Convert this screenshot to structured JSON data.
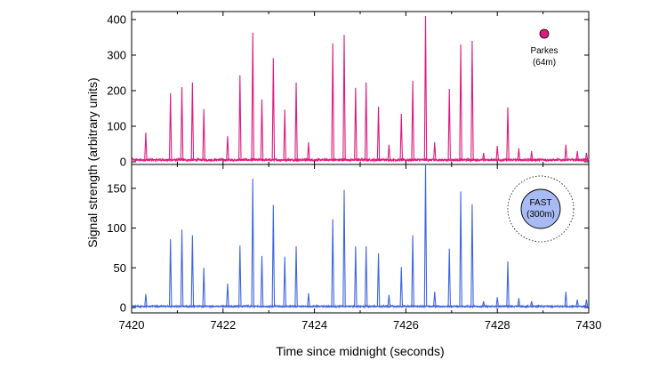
{
  "chart_data": {
    "type": "line",
    "xlabel": "Time since midnight (seconds)",
    "ylabel": "Signal strength (arbitrary units)",
    "xlim": [
      7420,
      7430
    ],
    "xticks": [
      7420,
      7422,
      7424,
      7426,
      7428,
      7430
    ],
    "grid": false,
    "panels": [
      {
        "name": "Parkes",
        "legend_lines": [
          "Parkes",
          "(64m)"
        ],
        "legend_position": "top-right",
        "color": "#e0197e",
        "ylim": [
          0,
          410
        ],
        "yticks": [
          0,
          100,
          200,
          300,
          400
        ],
        "baseline": 7,
        "pulses": [
          {
            "t": 7420.31,
            "v": 82
          },
          {
            "t": 7420.85,
            "v": 193
          },
          {
            "t": 7421.1,
            "v": 210
          },
          {
            "t": 7421.33,
            "v": 223
          },
          {
            "t": 7421.58,
            "v": 148
          },
          {
            "t": 7422.1,
            "v": 72
          },
          {
            "t": 7422.37,
            "v": 243
          },
          {
            "t": 7422.65,
            "v": 363
          },
          {
            "t": 7422.85,
            "v": 175
          },
          {
            "t": 7423.1,
            "v": 292
          },
          {
            "t": 7423.35,
            "v": 147
          },
          {
            "t": 7423.6,
            "v": 223
          },
          {
            "t": 7423.87,
            "v": 55
          },
          {
            "t": 7424.4,
            "v": 333
          },
          {
            "t": 7424.65,
            "v": 357
          },
          {
            "t": 7424.9,
            "v": 208
          },
          {
            "t": 7425.13,
            "v": 223
          },
          {
            "t": 7425.4,
            "v": 155
          },
          {
            "t": 7425.63,
            "v": 48
          },
          {
            "t": 7425.9,
            "v": 135
          },
          {
            "t": 7426.15,
            "v": 228
          },
          {
            "t": 7426.43,
            "v": 410
          },
          {
            "t": 7426.63,
            "v": 55
          },
          {
            "t": 7426.95,
            "v": 205
          },
          {
            "t": 7427.2,
            "v": 330
          },
          {
            "t": 7427.45,
            "v": 340
          },
          {
            "t": 7427.7,
            "v": 25
          },
          {
            "t": 7428.0,
            "v": 45
          },
          {
            "t": 7428.23,
            "v": 153
          },
          {
            "t": 7428.47,
            "v": 38
          },
          {
            "t": 7428.75,
            "v": 30
          },
          {
            "t": 7429.5,
            "v": 48
          },
          {
            "t": 7429.75,
            "v": 30
          },
          {
            "t": 7429.95,
            "v": 25
          }
        ]
      },
      {
        "name": "FAST",
        "legend_lines": [
          "FAST",
          "(300m)"
        ],
        "legend_position": "top-right",
        "color": "#3e65e0",
        "legend_fill": "#a9bbf5",
        "ylim": [
          0,
          180
        ],
        "yticks": [
          0,
          50,
          100,
          150
        ],
        "baseline": 2,
        "pulses": [
          {
            "t": 7420.31,
            "v": 17
          },
          {
            "t": 7420.85,
            "v": 86
          },
          {
            "t": 7421.1,
            "v": 98
          },
          {
            "t": 7421.33,
            "v": 91
          },
          {
            "t": 7421.58,
            "v": 50
          },
          {
            "t": 7422.1,
            "v": 30
          },
          {
            "t": 7422.37,
            "v": 78
          },
          {
            "t": 7422.65,
            "v": 162
          },
          {
            "t": 7422.85,
            "v": 65
          },
          {
            "t": 7423.1,
            "v": 129
          },
          {
            "t": 7423.35,
            "v": 64
          },
          {
            "t": 7423.6,
            "v": 77
          },
          {
            "t": 7423.87,
            "v": 18
          },
          {
            "t": 7424.4,
            "v": 111
          },
          {
            "t": 7424.65,
            "v": 148
          },
          {
            "t": 7424.9,
            "v": 77
          },
          {
            "t": 7425.13,
            "v": 77
          },
          {
            "t": 7425.4,
            "v": 68
          },
          {
            "t": 7425.63,
            "v": 16
          },
          {
            "t": 7425.9,
            "v": 51
          },
          {
            "t": 7426.15,
            "v": 91
          },
          {
            "t": 7426.43,
            "v": 180
          },
          {
            "t": 7426.63,
            "v": 20
          },
          {
            "t": 7426.95,
            "v": 74
          },
          {
            "t": 7427.2,
            "v": 146
          },
          {
            "t": 7427.45,
            "v": 130
          },
          {
            "t": 7427.7,
            "v": 8
          },
          {
            "t": 7428.0,
            "v": 13
          },
          {
            "t": 7428.23,
            "v": 58
          },
          {
            "t": 7428.47,
            "v": 12
          },
          {
            "t": 7428.75,
            "v": 8
          },
          {
            "t": 7429.5,
            "v": 20
          },
          {
            "t": 7429.75,
            "v": 10
          },
          {
            "t": 7429.95,
            "v": 10
          }
        ]
      }
    ]
  }
}
